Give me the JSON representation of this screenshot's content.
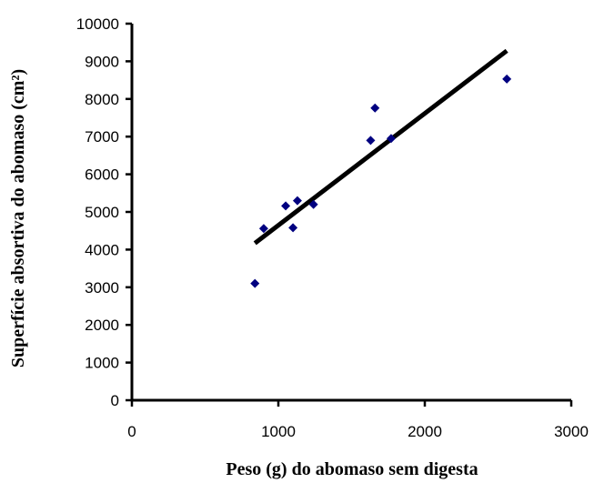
{
  "chart_data": {
    "type": "scatter",
    "title": "",
    "xlabel": "Peso (g) do abomaso sem digesta",
    "ylabel": "Superfície absortiva do abomaso (cm²)",
    "xlim": [
      0,
      3000
    ],
    "ylim": [
      0,
      10000
    ],
    "x_ticks": [
      "0",
      "1000",
      "2000",
      "3000"
    ],
    "y_ticks": [
      "0",
      "1000",
      "2000",
      "3000",
      "4000",
      "5000",
      "6000",
      "7000",
      "8000",
      "9000",
      "10000"
    ],
    "grid": false,
    "legend": "none",
    "marker_color": "#000080",
    "series": [
      {
        "marker": "diamond",
        "points": [
          {
            "x": 840,
            "y": 3100
          },
          {
            "x": 900,
            "y": 4560
          },
          {
            "x": 1050,
            "y": 5160
          },
          {
            "x": 1100,
            "y": 4580
          },
          {
            "x": 1130,
            "y": 5300
          },
          {
            "x": 1240,
            "y": 5200
          },
          {
            "x": 1630,
            "y": 6900
          },
          {
            "x": 1660,
            "y": 7760
          },
          {
            "x": 1770,
            "y": 6950
          },
          {
            "x": 2560,
            "y": 8530
          }
        ]
      }
    ],
    "trendline": {
      "x": [
        840,
        2560
      ],
      "y": [
        4170,
        9280
      ],
      "color": "#000000"
    }
  }
}
